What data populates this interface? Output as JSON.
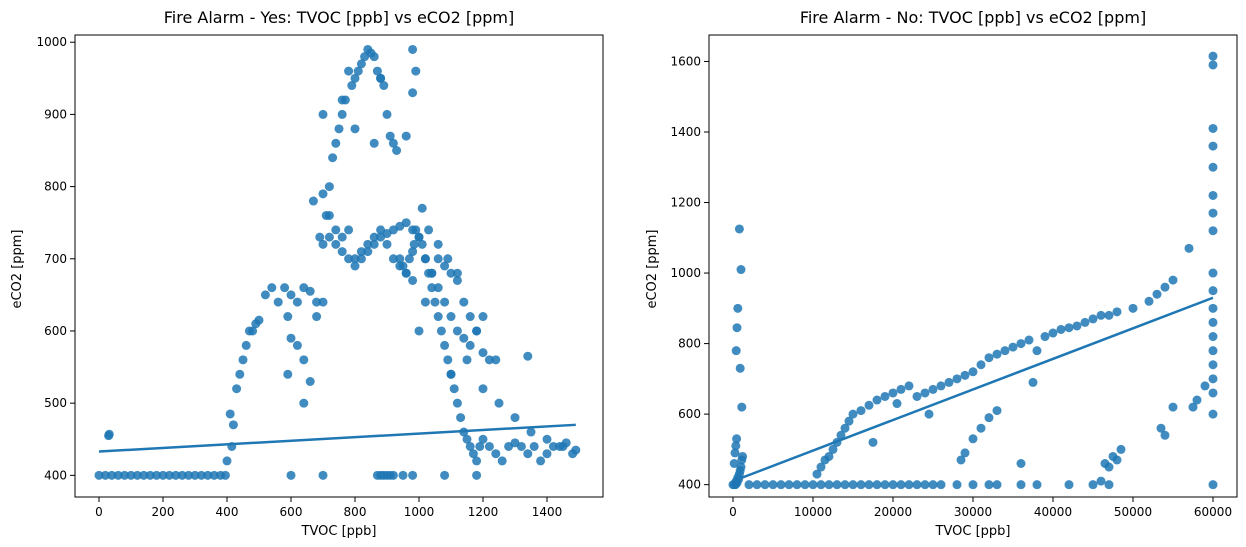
{
  "chart_data": [
    {
      "type": "scatter",
      "title": "Fire Alarm - Yes: TVOC [ppb] vs eCO2 [ppm]",
      "xlabel": "TVOC [ppb]",
      "ylabel": "eCO2 [ppm]",
      "xlim": [
        -75,
        1575
      ],
      "ylim": [
        370,
        1010
      ],
      "xticks": [
        0,
        200,
        400,
        600,
        800,
        1000,
        1200,
        1400
      ],
      "xtick_labels": [
        "0",
        "200",
        "400",
        "600",
        "800",
        "1000",
        "1200",
        "1400"
      ],
      "yticks": [
        400,
        500,
        600,
        700,
        800,
        900,
        1000
      ],
      "ytick_labels": [
        "400",
        "500",
        "600",
        "700",
        "800",
        "900",
        "1000"
      ],
      "grid": false,
      "legend": "none",
      "color": "#1f77b4",
      "regression_line": {
        "x": [
          0,
          1490
        ],
        "y": [
          433,
          470
        ]
      },
      "series": [
        {
          "x": [
            0,
            20,
            40,
            60,
            80,
            100,
            120,
            140,
            160,
            180,
            200,
            220,
            240,
            260,
            280,
            300,
            320,
            340,
            360,
            380,
            395,
            30,
            32,
            400,
            410,
            415,
            420,
            430,
            440,
            450,
            460,
            470,
            480,
            490,
            500,
            520,
            540,
            560,
            580,
            590,
            600,
            620,
            640,
            660,
            680,
            700,
            710,
            720,
            730,
            740,
            750,
            760,
            770,
            780,
            790,
            800,
            810,
            820,
            830,
            840,
            850,
            860,
            870,
            880,
            890,
            900,
            910,
            920,
            930,
            940,
            950,
            960,
            970,
            980,
            985,
            990,
            1000,
            1010,
            1020,
            1030,
            1040,
            1050,
            1060,
            1070,
            1080,
            1090,
            1100,
            1110,
            1120,
            1130,
            1140,
            1150,
            1160,
            1170,
            1180,
            1190,
            1200,
            1220,
            1240,
            1260,
            1280,
            1300,
            1320,
            1340,
            1360,
            1380,
            1400,
            1420,
            1440,
            1460,
            1480,
            1490,
            670,
            700,
            720,
            740,
            760,
            780,
            800,
            820,
            840,
            860,
            880,
            900,
            920,
            940,
            960,
            980,
            600,
            620,
            640,
            660,
            680,
            700,
            720,
            740,
            760,
            780,
            800,
            820,
            840,
            860,
            880,
            900,
            920,
            940,
            960,
            980,
            1000,
            1020,
            1040,
            1060,
            1080,
            1100,
            1120,
            1140,
            1160,
            1180,
            1200,
            1220,
            1240,
            1000,
            1020,
            1040,
            1060,
            1080,
            1100,
            1120,
            1140,
            1160,
            1180,
            1200,
            1100,
            1150,
            1200,
            1250,
            1300,
            1350,
            1400,
            1450,
            960,
            980,
            1010,
            1030,
            1060,
            1090,
            1120,
            1340,
            690,
            700,
            760,
            800,
            860,
            880,
            590,
            640,
            600,
            700,
            980,
            990,
            870,
            880,
            890,
            900,
            910,
            920,
            950,
            980,
            1080,
            1180
          ],
          "y": [
            400,
            400,
            400,
            400,
            400,
            400,
            400,
            400,
            400,
            400,
            400,
            400,
            400,
            400,
            400,
            400,
            400,
            400,
            400,
            400,
            400,
            455,
            457,
            420,
            485,
            440,
            470,
            520,
            540,
            560,
            580,
            600,
            600,
            610,
            615,
            650,
            660,
            640,
            660,
            620,
            590,
            580,
            560,
            530,
            640,
            720,
            760,
            800,
            840,
            860,
            880,
            900,
            920,
            960,
            940,
            950,
            960,
            970,
            980,
            990,
            985,
            980,
            960,
            950,
            940,
            900,
            870,
            860,
            850,
            700,
            690,
            680,
            700,
            710,
            720,
            740,
            730,
            720,
            700,
            680,
            660,
            640,
            620,
            600,
            580,
            560,
            540,
            520,
            500,
            480,
            460,
            450,
            440,
            430,
            420,
            440,
            450,
            440,
            430,
            420,
            440,
            445,
            440,
            430,
            440,
            420,
            430,
            440,
            440,
            445,
            430,
            435,
            780,
            790,
            760,
            740,
            730,
            740,
            700,
            710,
            720,
            730,
            740,
            720,
            700,
            690,
            680,
            670,
            650,
            640,
            660,
            655,
            620,
            640,
            730,
            720,
            710,
            700,
            690,
            700,
            710,
            720,
            730,
            735,
            740,
            745,
            750,
            740,
            730,
            700,
            680,
            660,
            640,
            620,
            600,
            590,
            580,
            600,
            570,
            560,
            560,
            600,
            640,
            680,
            700,
            690,
            680,
            670,
            640,
            620,
            600,
            620,
            540,
            560,
            520,
            500,
            480,
            460,
            450,
            440,
            870,
            990,
            770,
            740,
            720,
            700,
            680,
            565,
            730,
            900,
            920,
            880,
            860,
            950,
            540,
            500,
            400,
            400,
            930,
            960,
            400,
            400,
            400,
            400,
            400,
            400,
            400,
            400,
            400,
            400
          ]
        }
      ]
    },
    {
      "type": "scatter",
      "title": "Fire Alarm - No: TVOC [ppb] vs eCO2 [ppm]",
      "xlabel": "TVOC [ppb]",
      "ylabel": "eCO2 [ppm]",
      "xlim": [
        -3000,
        63000
      ],
      "ylim": [
        365,
        1675
      ],
      "xticks": [
        0,
        10000,
        20000,
        30000,
        40000,
        50000,
        60000
      ],
      "xtick_labels": [
        "0",
        "10000",
        "20000",
        "30000",
        "40000",
        "50000",
        "60000"
      ],
      "yticks": [
        400,
        600,
        800,
        1000,
        1200,
        1400,
        1600
      ],
      "ytick_labels": [
        "400",
        "600",
        "800",
        "1000",
        "1200",
        "1400",
        "1600"
      ],
      "grid": false,
      "legend": "none",
      "color": "#1f77b4",
      "regression_line": {
        "x": [
          0,
          60000
        ],
        "y": [
          410,
          930
        ]
      },
      "series": [
        {
          "x": [
            0,
            200,
            400,
            600,
            800,
            1000,
            1100,
            1200,
            300,
            500,
            700,
            900,
            150,
            250,
            350,
            450,
            2000,
            3000,
            4000,
            5000,
            6000,
            7000,
            8000,
            9000,
            10000,
            11000,
            12000,
            13000,
            14000,
            15000,
            16000,
            17000,
            18000,
            19000,
            20000,
            21000,
            22000,
            23000,
            24000,
            25000,
            26000,
            28000,
            30000,
            32000,
            33000,
            36000,
            38000,
            42000,
            45000,
            47000,
            10500,
            11000,
            11500,
            12000,
            12500,
            13000,
            13500,
            14000,
            14500,
            15000,
            16000,
            17000,
            18000,
            19000,
            20000,
            21000,
            22000,
            23000,
            24000,
            25000,
            26000,
            27000,
            28000,
            29000,
            30000,
            31000,
            32000,
            33000,
            34000,
            35000,
            36000,
            37000,
            38000,
            39000,
            40000,
            41000,
            42000,
            43000,
            44000,
            45000,
            46000,
            47000,
            48000,
            50000,
            52000,
            53000,
            54000,
            55000,
            57000,
            17500,
            20500,
            24500,
            28500,
            29000,
            30000,
            31000,
            32000,
            33000,
            36000,
            37500,
            46000,
            46500,
            47000,
            47500,
            48000,
            48500,
            53500,
            54000,
            55000,
            57500,
            58000,
            59000,
            60000,
            60000,
            60000,
            60000,
            60000,
            60000,
            60000,
            60000,
            60000,
            60000,
            60000,
            60000,
            60000,
            60000,
            60000,
            60000,
            60000,
            60000,
            60000,
            1000,
            800,
            600,
            500,
            400,
            900,
            1100
          ],
          "y": [
            400,
            400,
            410,
            420,
            430,
            450,
            470,
            480,
            400,
            405,
            415,
            440,
            460,
            490,
            510,
            530,
            400,
            400,
            400,
            400,
            400,
            400,
            400,
            400,
            400,
            400,
            400,
            400,
            400,
            400,
            400,
            400,
            400,
            400,
            400,
            400,
            400,
            400,
            400,
            400,
            400,
            400,
            400,
            400,
            400,
            400,
            400,
            400,
            400,
            400,
            430,
            450,
            470,
            480,
            500,
            520,
            540,
            560,
            580,
            600,
            610,
            625,
            640,
            650,
            660,
            670,
            680,
            650,
            660,
            670,
            680,
            690,
            700,
            710,
            720,
            740,
            760,
            770,
            780,
            790,
            800,
            810,
            780,
            820,
            830,
            840,
            845,
            850,
            860,
            870,
            880,
            880,
            890,
            900,
            920,
            940,
            960,
            980,
            1070,
            520,
            630,
            600,
            470,
            490,
            530,
            560,
            590,
            610,
            460,
            690,
            410,
            460,
            450,
            480,
            470,
            500,
            560,
            540,
            620,
            620,
            640,
            680,
            400,
            600,
            660,
            700,
            740,
            780,
            820,
            860,
            900,
            950,
            1000,
            1120,
            1170,
            1220,
            1300,
            1360,
            1410,
            1590,
            1615,
            1010,
            1125,
            900,
            845,
            780,
            730,
            620
          ]
        }
      ]
    }
  ]
}
